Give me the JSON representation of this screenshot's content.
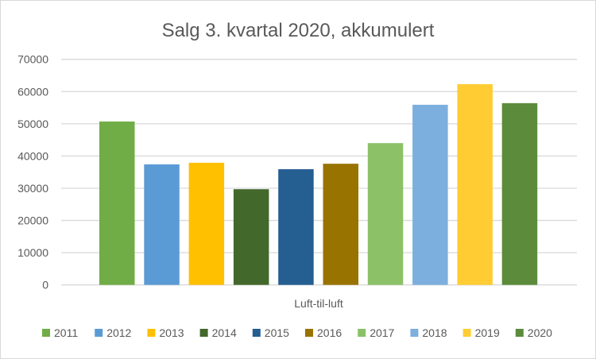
{
  "chart_data": {
    "type": "bar",
    "title": "Salg 3. kvartal 2020, akkumulert",
    "xlabel": "",
    "ylabel": "",
    "categories": [
      "Luft-til-luft"
    ],
    "ylim": [
      0,
      70000
    ],
    "yticks": [
      "0",
      "10000",
      "20000",
      "30000",
      "40000",
      "50000",
      "60000",
      "70000"
    ],
    "grid": true,
    "legend_position": "bottom",
    "series": [
      {
        "name": "2011",
        "values": [
          50700
        ],
        "color": "#70AD47"
      },
      {
        "name": "2012",
        "values": [
          37400
        ],
        "color": "#5B9BD5"
      },
      {
        "name": "2013",
        "values": [
          37900
        ],
        "color": "#FFC000"
      },
      {
        "name": "2014",
        "values": [
          29700
        ],
        "color": "#43682B"
      },
      {
        "name": "2015",
        "values": [
          35900
        ],
        "color": "#255E91"
      },
      {
        "name": "2016",
        "values": [
          37600
        ],
        "color": "#997300"
      },
      {
        "name": "2017",
        "values": [
          44000
        ],
        "color": "#8CC168"
      },
      {
        "name": "2018",
        "values": [
          55900
        ],
        "color": "#7CAFDD"
      },
      {
        "name": "2019",
        "values": [
          62300
        ],
        "color": "#FFCD33"
      },
      {
        "name": "2020",
        "values": [
          56400
        ],
        "color": "#5B8B3B"
      }
    ]
  }
}
